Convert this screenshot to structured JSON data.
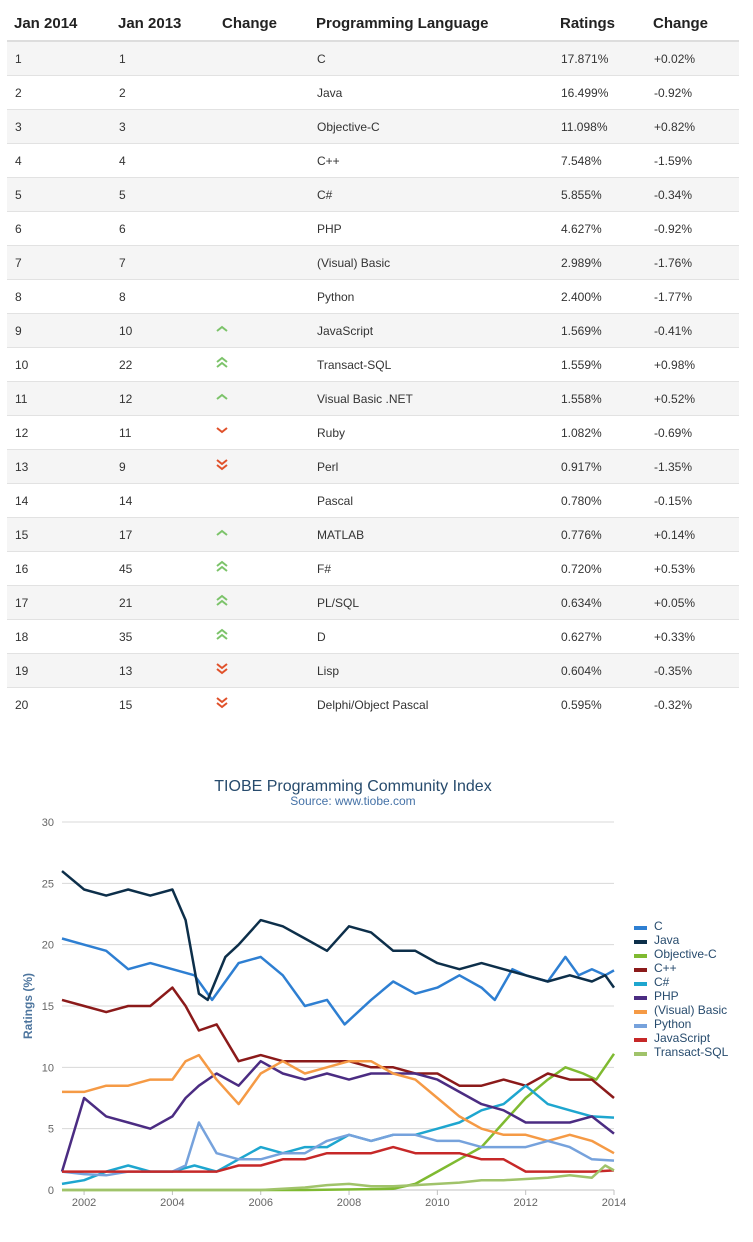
{
  "table": {
    "headers": [
      "Jan 2014",
      "Jan 2013",
      "Change",
      "Programming Language",
      "Ratings",
      "Change"
    ],
    "rows": [
      {
        "jan2014": "1",
        "jan2013": "1",
        "trend": "",
        "language": "C",
        "rating": "17.871%",
        "change": "+0.02%"
      },
      {
        "jan2014": "2",
        "jan2013": "2",
        "trend": "",
        "language": "Java",
        "rating": "16.499%",
        "change": "-0.92%"
      },
      {
        "jan2014": "3",
        "jan2013": "3",
        "trend": "",
        "language": "Objective-C",
        "rating": "11.098%",
        "change": "+0.82%"
      },
      {
        "jan2014": "4",
        "jan2013": "4",
        "trend": "",
        "language": "C++",
        "rating": "7.548%",
        "change": "-1.59%"
      },
      {
        "jan2014": "5",
        "jan2013": "5",
        "trend": "",
        "language": "C#",
        "rating": "5.855%",
        "change": "-0.34%"
      },
      {
        "jan2014": "6",
        "jan2013": "6",
        "trend": "",
        "language": "PHP",
        "rating": "4.627%",
        "change": "-0.92%"
      },
      {
        "jan2014": "7",
        "jan2013": "7",
        "trend": "",
        "language": "(Visual) Basic",
        "rating": "2.989%",
        "change": "-1.76%"
      },
      {
        "jan2014": "8",
        "jan2013": "8",
        "trend": "",
        "language": "Python",
        "rating": "2.400%",
        "change": "-1.77%"
      },
      {
        "jan2014": "9",
        "jan2013": "10",
        "trend": "up",
        "language": "JavaScript",
        "rating": "1.569%",
        "change": "-0.41%"
      },
      {
        "jan2014": "10",
        "jan2013": "22",
        "trend": "up2",
        "language": "Transact-SQL",
        "rating": "1.559%",
        "change": "+0.98%"
      },
      {
        "jan2014": "11",
        "jan2013": "12",
        "trend": "up",
        "language": "Visual Basic .NET",
        "rating": "1.558%",
        "change": "+0.52%"
      },
      {
        "jan2014": "12",
        "jan2013": "11",
        "trend": "down",
        "language": "Ruby",
        "rating": "1.082%",
        "change": "-0.69%"
      },
      {
        "jan2014": "13",
        "jan2013": "9",
        "trend": "down2",
        "language": "Perl",
        "rating": "0.917%",
        "change": "-1.35%"
      },
      {
        "jan2014": "14",
        "jan2013": "14",
        "trend": "",
        "language": "Pascal",
        "rating": "0.780%",
        "change": "-0.15%"
      },
      {
        "jan2014": "15",
        "jan2013": "17",
        "trend": "up",
        "language": "MATLAB",
        "rating": "0.776%",
        "change": "+0.14%"
      },
      {
        "jan2014": "16",
        "jan2013": "45",
        "trend": "up2",
        "language": "F#",
        "rating": "0.720%",
        "change": "+0.53%"
      },
      {
        "jan2014": "17",
        "jan2013": "21",
        "trend": "up2",
        "language": "PL/SQL",
        "rating": "0.634%",
        "change": "+0.05%"
      },
      {
        "jan2014": "18",
        "jan2013": "35",
        "trend": "up2",
        "language": "D",
        "rating": "0.627%",
        "change": "+0.33%"
      },
      {
        "jan2014": "19",
        "jan2013": "13",
        "trend": "down2",
        "language": "Lisp",
        "rating": "0.604%",
        "change": "-0.35%"
      },
      {
        "jan2014": "20",
        "jan2013": "15",
        "trend": "down2",
        "language": "Delphi/Object Pascal",
        "rating": "0.595%",
        "change": "-0.32%"
      }
    ],
    "colors": {
      "up": "#7cc36a",
      "down": "#e0512a"
    }
  },
  "chart_data": {
    "type": "line",
    "title": "TIOBE Programming Community Index",
    "subtitle": "Source: www.tiobe.com",
    "ylabel": "Ratings (%)",
    "xlabel": "",
    "ylim": [
      0,
      30
    ],
    "yticks": [
      0,
      5,
      10,
      15,
      20,
      25,
      30
    ],
    "xlim": [
      2001.5,
      2014.0
    ],
    "xticks": [
      2002,
      2004,
      2006,
      2008,
      2010,
      2012,
      2014
    ],
    "grid": true,
    "legend": "right",
    "series": [
      {
        "name": "C",
        "color": "#2e7fd2",
        "x": [
          2001.5,
          2002,
          2002.5,
          2003,
          2003.5,
          2004,
          2004.5,
          2004.9,
          2005.5,
          2006,
          2006.5,
          2007,
          2007.5,
          2007.9,
          2008.5,
          2009,
          2009.5,
          2010,
          2010.5,
          2011,
          2011.3,
          2011.7,
          2012,
          2012.5,
          2012.9,
          2013.2,
          2013.5,
          2013.8,
          2014
        ],
        "y": [
          20.5,
          20.0,
          19.5,
          18.0,
          18.5,
          18.0,
          17.5,
          15.5,
          18.5,
          19.0,
          17.5,
          15.0,
          15.5,
          13.5,
          15.5,
          17.0,
          16.0,
          16.5,
          17.5,
          16.5,
          15.5,
          18.0,
          17.5,
          17.0,
          19.0,
          17.5,
          18.0,
          17.5,
          17.9
        ]
      },
      {
        "name": "Java",
        "color": "#0d2f4a",
        "x": [
          2001.5,
          2002,
          2002.5,
          2003,
          2003.5,
          2004,
          2004.3,
          2004.6,
          2004.8,
          2005.2,
          2005.5,
          2006,
          2006.5,
          2007,
          2007.5,
          2008,
          2008.5,
          2009,
          2009.5,
          2010,
          2010.5,
          2011,
          2011.5,
          2012,
          2012.5,
          2013,
          2013.5,
          2013.8,
          2014
        ],
        "y": [
          26.0,
          24.5,
          24.0,
          24.5,
          24.0,
          24.5,
          22.0,
          16.0,
          15.5,
          19.0,
          20.0,
          22.0,
          21.5,
          20.5,
          19.5,
          21.5,
          21.0,
          19.5,
          19.5,
          18.5,
          18.0,
          18.5,
          18.0,
          17.5,
          17.0,
          17.5,
          17.0,
          17.5,
          16.5
        ]
      },
      {
        "name": "Objective-C",
        "color": "#7fba31",
        "x": [
          2001.5,
          2004,
          2007,
          2009,
          2009.5,
          2010,
          2010.5,
          2011,
          2011.5,
          2012,
          2012.5,
          2012.9,
          2013.3,
          2013.6,
          2014
        ],
        "y": [
          0.0,
          0.0,
          0.0,
          0.1,
          0.5,
          1.5,
          2.5,
          3.5,
          5.5,
          7.5,
          9.0,
          10.0,
          9.5,
          9.0,
          11.1
        ]
      },
      {
        "name": "C++",
        "color": "#8b1a1a",
        "x": [
          2001.5,
          2002,
          2002.5,
          2003,
          2003.5,
          2004,
          2004.3,
          2004.6,
          2005,
          2005.5,
          2006,
          2006.5,
          2007,
          2007.5,
          2008,
          2008.5,
          2009,
          2009.5,
          2010,
          2010.5,
          2011,
          2011.5,
          2012,
          2012.5,
          2013,
          2013.5,
          2014
        ],
        "y": [
          15.5,
          15.0,
          14.5,
          15.0,
          15.0,
          16.5,
          15.0,
          13.0,
          13.5,
          10.5,
          11.0,
          10.5,
          10.5,
          10.5,
          10.5,
          10.0,
          10.0,
          9.5,
          9.5,
          8.5,
          8.5,
          9.0,
          8.5,
          9.5,
          9.0,
          9.0,
          7.5
        ]
      },
      {
        "name": "C#",
        "color": "#1ea6cf",
        "x": [
          2001.5,
          2002,
          2002.5,
          2003,
          2003.5,
          2004,
          2004.5,
          2005,
          2005.5,
          2006,
          2006.5,
          2007,
          2007.5,
          2008,
          2008.5,
          2009,
          2009.5,
          2010,
          2010.5,
          2011,
          2011.5,
          2012,
          2012.5,
          2013,
          2013.5,
          2014
        ],
        "y": [
          0.5,
          0.8,
          1.5,
          2.0,
          1.5,
          1.5,
          2.0,
          1.5,
          2.5,
          3.5,
          3.0,
          3.5,
          3.5,
          4.5,
          4.0,
          4.5,
          4.5,
          5.0,
          5.5,
          6.5,
          7.0,
          8.5,
          7.0,
          6.5,
          6.0,
          5.9
        ]
      },
      {
        "name": "PHP",
        "color": "#4b2c82",
        "x": [
          2001.5,
          2002,
          2002.5,
          2003,
          2003.5,
          2004,
          2004.3,
          2004.6,
          2005,
          2005.5,
          2006,
          2006.5,
          2007,
          2007.5,
          2008,
          2008.5,
          2009,
          2009.5,
          2010,
          2010.5,
          2011,
          2011.5,
          2012,
          2012.5,
          2013,
          2013.5,
          2014
        ],
        "y": [
          1.5,
          7.5,
          6.0,
          5.5,
          5.0,
          6.0,
          7.5,
          8.5,
          9.5,
          8.5,
          10.5,
          9.5,
          9.0,
          9.5,
          9.0,
          9.5,
          9.5,
          9.5,
          9.0,
          8.0,
          7.0,
          6.5,
          5.5,
          5.5,
          5.5,
          6.0,
          4.6
        ]
      },
      {
        "name": "(Visual) Basic",
        "color": "#f59a45",
        "x": [
          2001.5,
          2002,
          2002.5,
          2003,
          2003.5,
          2004,
          2004.3,
          2004.6,
          2005,
          2005.5,
          2006,
          2006.5,
          2007,
          2007.5,
          2008,
          2008.5,
          2009,
          2009.5,
          2010,
          2010.5,
          2011,
          2011.5,
          2012,
          2012.5,
          2013,
          2013.5,
          2014
        ],
        "y": [
          8.0,
          8.0,
          8.5,
          8.5,
          9.0,
          9.0,
          10.5,
          11.0,
          9.0,
          7.0,
          9.5,
          10.5,
          9.5,
          10.0,
          10.5,
          10.5,
          9.5,
          9.0,
          7.5,
          6.0,
          5.0,
          4.5,
          4.5,
          4.0,
          4.5,
          4.0,
          3.0
        ]
      },
      {
        "name": "Python",
        "color": "#76a2dc",
        "x": [
          2001.5,
          2002,
          2002.5,
          2003,
          2003.5,
          2004,
          2004.3,
          2004.6,
          2005,
          2005.5,
          2006,
          2006.5,
          2007,
          2007.5,
          2008,
          2008.5,
          2009,
          2009.5,
          2010,
          2010.5,
          2011,
          2011.5,
          2012,
          2012.5,
          2013,
          2013.5,
          2014
        ],
        "y": [
          1.5,
          1.3,
          1.2,
          1.5,
          1.5,
          1.5,
          2.0,
          5.5,
          3.0,
          2.5,
          2.5,
          3.0,
          3.0,
          4.0,
          4.5,
          4.0,
          4.5,
          4.5,
          4.0,
          4.0,
          3.5,
          3.5,
          3.5,
          4.0,
          3.5,
          2.5,
          2.4
        ]
      },
      {
        "name": "JavaScript",
        "color": "#c62828",
        "x": [
          2001.5,
          2002,
          2002.5,
          2003,
          2003.5,
          2004,
          2004.5,
          2005,
          2005.5,
          2006,
          2006.5,
          2007,
          2007.5,
          2008,
          2008.5,
          2009,
          2009.5,
          2010,
          2010.5,
          2011,
          2011.5,
          2012,
          2012.5,
          2013,
          2013.5,
          2014
        ],
        "y": [
          1.5,
          1.5,
          1.5,
          1.5,
          1.5,
          1.5,
          1.5,
          1.5,
          2.0,
          2.0,
          2.5,
          2.5,
          3.0,
          3.0,
          3.0,
          3.5,
          3.0,
          3.0,
          3.0,
          2.5,
          2.5,
          1.5,
          1.5,
          1.5,
          1.5,
          1.6
        ]
      },
      {
        "name": "Transact-SQL",
        "color": "#a0c36a",
        "x": [
          2001.5,
          2004,
          2006,
          2007,
          2007.5,
          2008,
          2008.5,
          2009,
          2009.5,
          2010,
          2010.5,
          2011,
          2011.5,
          2012,
          2012.5,
          2013,
          2013.5,
          2013.8,
          2014
        ],
        "y": [
          0.0,
          0.0,
          0.0,
          0.2,
          0.4,
          0.5,
          0.3,
          0.3,
          0.4,
          0.5,
          0.6,
          0.8,
          0.8,
          0.9,
          1.0,
          1.2,
          1.0,
          2.0,
          1.6
        ]
      }
    ]
  }
}
